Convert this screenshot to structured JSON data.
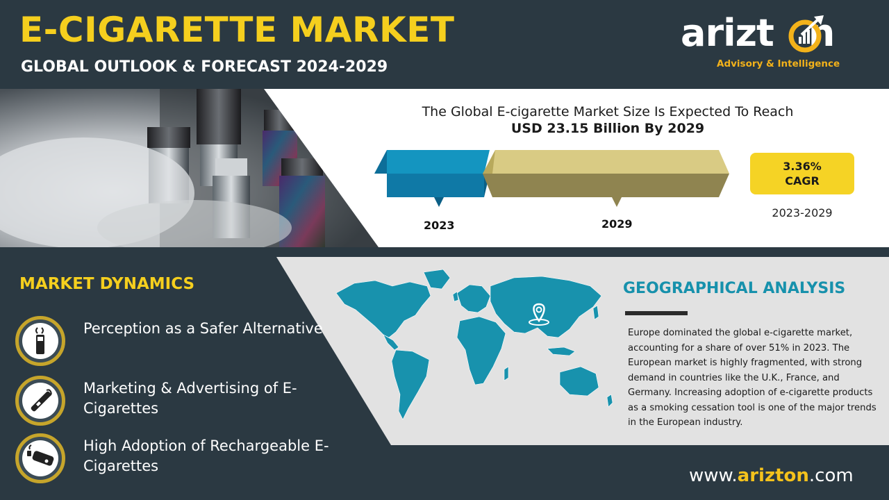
{
  "header": {
    "title": "E-CIGARETTE MARKET",
    "subtitle": "GLOBAL OUTLOOK & FORECAST 2024-2029"
  },
  "logo": {
    "wordmark": "arizton",
    "tagline": "Advisory & Intelligence"
  },
  "headline": {
    "line1": "The Global E-cigarette Market Size Is Expected To Reach",
    "line2": "USD 23.15 Billion By 2029"
  },
  "chart_data": {
    "type": "bar",
    "categories": [
      "2023",
      "2029"
    ],
    "colors": [
      "#1495c0",
      "#d4c475"
    ]
  },
  "cagr": {
    "value": "3.36%",
    "label": "CAGR",
    "period": "2023-2029"
  },
  "dynamics": {
    "title": "MARKET DYNAMICS",
    "items": [
      {
        "text": "Perception as a Safer Alternative",
        "icon": "cigarette-smoke-icon"
      },
      {
        "text": "Marketing & Advertising of E-Cigarettes",
        "icon": "vape-pen-icon"
      },
      {
        "text": "High Adoption of Rechargeable E-Cigarettes",
        "icon": "rechargeable-ecig-icon"
      }
    ]
  },
  "geo": {
    "title": "GEOGRAPHICAL ANALYSIS",
    "text": "Europe dominated the global e-cigarette market, accounting for a share of over 51% in 2023. The European market is highly fragmented, with strong demand in countries like the U.K., France, and Germany. Increasing adoption of e-cigarette products as a smoking cessation tool is one of the major trends in the European industry.",
    "map_color": "#1892ad"
  },
  "footer": {
    "site_prefix": "www.",
    "site_brand": "arizton",
    "site_suffix": ".com"
  },
  "colors": {
    "background": "#2b3942",
    "accent_yellow": "#f5cf1e",
    "accent_blue": "#1791ac"
  }
}
